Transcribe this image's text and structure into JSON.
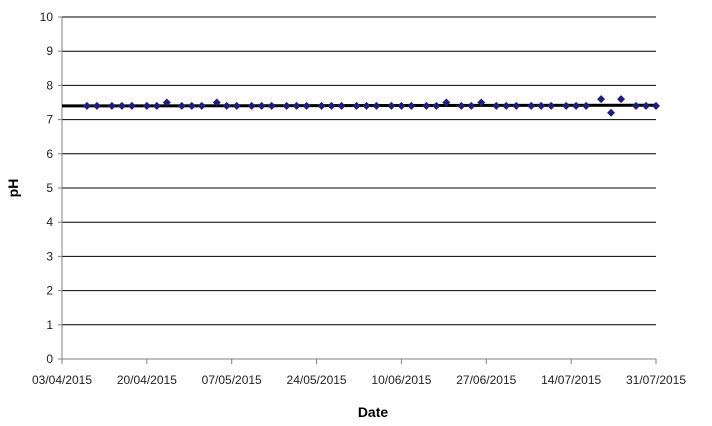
{
  "chart_data": {
    "type": "scatter",
    "title": "",
    "xlabel": "Date",
    "ylabel": "pH",
    "x_axis_kind": "date",
    "xlim": [
      "03/04/2015",
      "31/07/2015"
    ],
    "ylim": [
      0,
      10
    ],
    "y_ticks": [
      "0",
      "1",
      "2",
      "3",
      "4",
      "5",
      "6",
      "7",
      "8",
      "9",
      "10"
    ],
    "x_ticks": [
      "03/04/2015",
      "20/04/2015",
      "07/05/2015",
      "24/05/2015",
      "10/06/2015",
      "27/06/2015",
      "14/07/2015",
      "31/07/2015"
    ],
    "grid": "horizontal",
    "legend": "none",
    "colors": {
      "marker": "#1f1f7a",
      "trend_line": "#000000",
      "grid": "#000000",
      "axis": "#808080"
    },
    "series": [
      {
        "marker": "diamond",
        "points": [
          {
            "x": "08/04/2015",
            "y": 7.4
          },
          {
            "x": "10/04/2015",
            "y": 7.4
          },
          {
            "x": "13/04/2015",
            "y": 7.4
          },
          {
            "x": "15/04/2015",
            "y": 7.4
          },
          {
            "x": "17/04/2015",
            "y": 7.4
          },
          {
            "x": "20/04/2015",
            "y": 7.4
          },
          {
            "x": "22/04/2015",
            "y": 7.4
          },
          {
            "x": "24/04/2015",
            "y": 7.5
          },
          {
            "x": "27/04/2015",
            "y": 7.4
          },
          {
            "x": "29/04/2015",
            "y": 7.4
          },
          {
            "x": "01/05/2015",
            "y": 7.4
          },
          {
            "x": "04/05/2015",
            "y": 7.5
          },
          {
            "x": "06/05/2015",
            "y": 7.4
          },
          {
            "x": "08/05/2015",
            "y": 7.4
          },
          {
            "x": "11/05/2015",
            "y": 7.4
          },
          {
            "x": "13/05/2015",
            "y": 7.4
          },
          {
            "x": "15/05/2015",
            "y": 7.4
          },
          {
            "x": "18/05/2015",
            "y": 7.4
          },
          {
            "x": "20/05/2015",
            "y": 7.4
          },
          {
            "x": "22/05/2015",
            "y": 7.4
          },
          {
            "x": "25/05/2015",
            "y": 7.4
          },
          {
            "x": "27/05/2015",
            "y": 7.4
          },
          {
            "x": "29/05/2015",
            "y": 7.4
          },
          {
            "x": "01/06/2015",
            "y": 7.4
          },
          {
            "x": "03/06/2015",
            "y": 7.4
          },
          {
            "x": "05/06/2015",
            "y": 7.4
          },
          {
            "x": "08/06/2015",
            "y": 7.4
          },
          {
            "x": "10/06/2015",
            "y": 7.4
          },
          {
            "x": "12/06/2015",
            "y": 7.4
          },
          {
            "x": "15/06/2015",
            "y": 7.4
          },
          {
            "x": "17/06/2015",
            "y": 7.4
          },
          {
            "x": "19/06/2015",
            "y": 7.5
          },
          {
            "x": "22/06/2015",
            "y": 7.4
          },
          {
            "x": "24/06/2015",
            "y": 7.4
          },
          {
            "x": "26/06/2015",
            "y": 7.5
          },
          {
            "x": "29/06/2015",
            "y": 7.4
          },
          {
            "x": "01/07/2015",
            "y": 7.4
          },
          {
            "x": "03/07/2015",
            "y": 7.4
          },
          {
            "x": "06/07/2015",
            "y": 7.4
          },
          {
            "x": "08/07/2015",
            "y": 7.4
          },
          {
            "x": "10/07/2015",
            "y": 7.4
          },
          {
            "x": "13/07/2015",
            "y": 7.4
          },
          {
            "x": "15/07/2015",
            "y": 7.4
          },
          {
            "x": "17/07/2015",
            "y": 7.4
          },
          {
            "x": "20/07/2015",
            "y": 7.6
          },
          {
            "x": "22/07/2015",
            "y": 7.2
          },
          {
            "x": "24/07/2015",
            "y": 7.6
          },
          {
            "x": "27/07/2015",
            "y": 7.4
          },
          {
            "x": "29/07/2015",
            "y": 7.4
          },
          {
            "x": "31/07/2015",
            "y": 7.4
          }
        ]
      }
    ],
    "trend_line": {
      "x_start": "03/04/2015",
      "x_end": "31/07/2015",
      "y_start": 7.4,
      "y_end": 7.42
    }
  }
}
